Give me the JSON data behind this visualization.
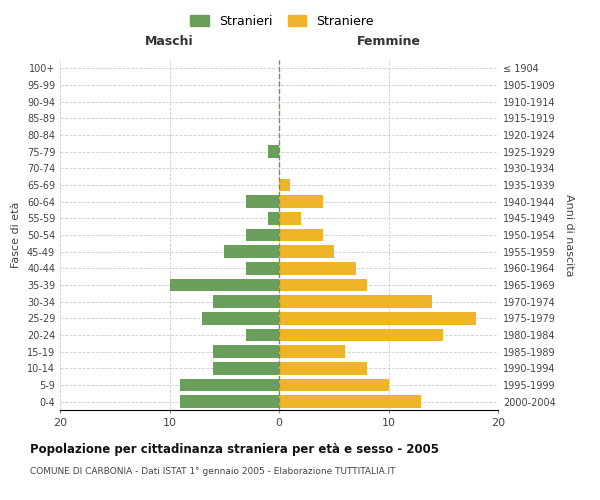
{
  "age_groups": [
    "0-4",
    "5-9",
    "10-14",
    "15-19",
    "20-24",
    "25-29",
    "30-34",
    "35-39",
    "40-44",
    "45-49",
    "50-54",
    "55-59",
    "60-64",
    "65-69",
    "70-74",
    "75-79",
    "80-84",
    "85-89",
    "90-94",
    "95-99",
    "100+"
  ],
  "birth_years": [
    "2000-2004",
    "1995-1999",
    "1990-1994",
    "1985-1989",
    "1980-1984",
    "1975-1979",
    "1970-1974",
    "1965-1969",
    "1960-1964",
    "1955-1959",
    "1950-1954",
    "1945-1949",
    "1940-1944",
    "1935-1939",
    "1930-1934",
    "1925-1929",
    "1920-1924",
    "1915-1919",
    "1910-1914",
    "1905-1909",
    "≤ 1904"
  ],
  "maschi": [
    9,
    9,
    6,
    6,
    3,
    7,
    6,
    10,
    3,
    5,
    3,
    1,
    3,
    0,
    0,
    1,
    0,
    0,
    0,
    0,
    0
  ],
  "femmine": [
    13,
    10,
    8,
    6,
    15,
    18,
    14,
    8,
    7,
    5,
    4,
    2,
    4,
    1,
    0,
    0,
    0,
    0,
    0,
    0,
    0
  ],
  "color_maschi": "#6a9e5b",
  "color_femmine": "#f0b429",
  "title": "Popolazione per cittadinanza straniera per età e sesso - 2005",
  "subtitle": "COMUNE DI CARBONIA - Dati ISTAT 1° gennaio 2005 - Elaborazione TUTTITALIA.IT",
  "xlabel_left": "Maschi",
  "xlabel_right": "Femmine",
  "ylabel_left": "Fasce di età",
  "ylabel_right": "Anni di nascita",
  "legend_maschi": "Stranieri",
  "legend_femmine": "Straniere",
  "xlim": 20,
  "bg_color": "#ffffff",
  "grid_color": "#cccccc"
}
